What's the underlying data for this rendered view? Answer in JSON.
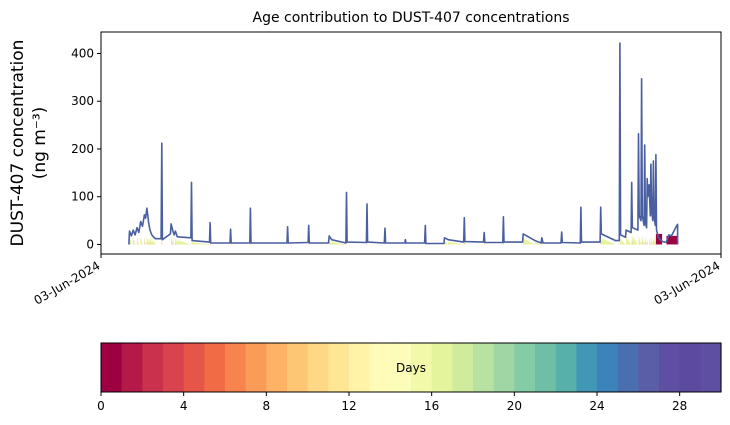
{
  "chart_data": {
    "type": "area",
    "title": "Age contribution to DUST-407 concentrations",
    "ylabel_line1": "DUST-407 concentration",
    "ylabel_line2": "(ng m⁻³)",
    "xlabel": "",
    "ylim": [
      -20,
      445
    ],
    "yticks": [
      0,
      100,
      200,
      300,
      400
    ],
    "xticks": [
      {
        "pos": 0.0,
        "label": "03-Jun-2024"
      },
      {
        "pos": 1.0,
        "label": "03-Jun-2024"
      }
    ],
    "envelope": [
      [
        0.045,
        0
      ],
      [
        0.046,
        28
      ],
      [
        0.049,
        18
      ],
      [
        0.052,
        30
      ],
      [
        0.055,
        20
      ],
      [
        0.058,
        35
      ],
      [
        0.061,
        25
      ],
      [
        0.064,
        48
      ],
      [
        0.067,
        38
      ],
      [
        0.07,
        62
      ],
      [
        0.072,
        55
      ],
      [
        0.074,
        76
      ],
      [
        0.077,
        45
      ],
      [
        0.079,
        30
      ],
      [
        0.082,
        20
      ],
      [
        0.085,
        15
      ],
      [
        0.088,
        12
      ],
      [
        0.097,
        12
      ],
      [
        0.098,
        212
      ],
      [
        0.099,
        10
      ],
      [
        0.112,
        22
      ],
      [
        0.113,
        43
      ],
      [
        0.116,
        28
      ],
      [
        0.118,
        20
      ],
      [
        0.12,
        28
      ],
      [
        0.123,
        16
      ],
      [
        0.145,
        14
      ],
      [
        0.146,
        130
      ],
      [
        0.147,
        8
      ],
      [
        0.175,
        5
      ],
      [
        0.176,
        46
      ],
      [
        0.177,
        3
      ],
      [
        0.208,
        3
      ],
      [
        0.209,
        32
      ],
      [
        0.21,
        3
      ],
      [
        0.24,
        3
      ],
      [
        0.241,
        76
      ],
      [
        0.242,
        3
      ],
      [
        0.3,
        3
      ],
      [
        0.301,
        37
      ],
      [
        0.302,
        3
      ],
      [
        0.334,
        4
      ],
      [
        0.335,
        40
      ],
      [
        0.336,
        3
      ],
      [
        0.367,
        3
      ],
      [
        0.368,
        18
      ],
      [
        0.372,
        10
      ],
      [
        0.395,
        3
      ],
      [
        0.396,
        109
      ],
      [
        0.397,
        5
      ],
      [
        0.428,
        4
      ],
      [
        0.429,
        85
      ],
      [
        0.43,
        5
      ],
      [
        0.457,
        3
      ],
      [
        0.458,
        34
      ],
      [
        0.459,
        3
      ],
      [
        0.49,
        3
      ],
      [
        0.491,
        10
      ],
      [
        0.492,
        3
      ],
      [
        0.522,
        3
      ],
      [
        0.523,
        40
      ],
      [
        0.524,
        2
      ],
      [
        0.553,
        2
      ],
      [
        0.554,
        14
      ],
      [
        0.56,
        10
      ],
      [
        0.585,
        5
      ],
      [
        0.586,
        56
      ],
      [
        0.587,
        6
      ],
      [
        0.617,
        5
      ],
      [
        0.618,
        25
      ],
      [
        0.619,
        4
      ],
      [
        0.648,
        4
      ],
      [
        0.649,
        58
      ],
      [
        0.65,
        5
      ],
      [
        0.68,
        5
      ],
      [
        0.681,
        22
      ],
      [
        0.7,
        8
      ],
      [
        0.71,
        3
      ],
      [
        0.711,
        14
      ],
      [
        0.713,
        3
      ],
      [
        0.742,
        3
      ],
      [
        0.743,
        26
      ],
      [
        0.744,
        4
      ],
      [
        0.773,
        3
      ],
      [
        0.774,
        78
      ],
      [
        0.775,
        5
      ],
      [
        0.805,
        5
      ],
      [
        0.806,
        78
      ],
      [
        0.807,
        22
      ],
      [
        0.83,
        8
      ],
      [
        0.836,
        8
      ],
      [
        0.837,
        422
      ],
      [
        0.838,
        20
      ],
      [
        0.846,
        15
      ],
      [
        0.847,
        30
      ],
      [
        0.855,
        25
      ],
      [
        0.856,
        130
      ],
      [
        0.857,
        35
      ],
      [
        0.866,
        30
      ],
      [
        0.867,
        232
      ],
      [
        0.868,
        60
      ],
      [
        0.871,
        50
      ],
      [
        0.872,
        347
      ],
      [
        0.873,
        60
      ],
      [
        0.876,
        40
      ],
      [
        0.877,
        208
      ],
      [
        0.878,
        45
      ],
      [
        0.88,
        35
      ],
      [
        0.881,
        138
      ],
      [
        0.882,
        100
      ],
      [
        0.884,
        125
      ],
      [
        0.886,
        60
      ],
      [
        0.887,
        168
      ],
      [
        0.888,
        70
      ],
      [
        0.89,
        50
      ],
      [
        0.891,
        175
      ],
      [
        0.892,
        60
      ],
      [
        0.894,
        40
      ],
      [
        0.895,
        188
      ],
      [
        0.896,
        30
      ],
      [
        0.899,
        15
      ],
      [
        0.902,
        10
      ],
      [
        0.906,
        6
      ],
      [
        0.909,
        5
      ],
      [
        0.912,
        5
      ],
      [
        0.916,
        20
      ],
      [
        0.92,
        18
      ],
      [
        0.924,
        28
      ],
      [
        0.928,
        38
      ],
      [
        0.93,
        42
      ],
      [
        0.93,
        0
      ]
    ],
    "colorbar": {
      "label": "Days",
      "range": [
        0,
        30
      ],
      "ticks": [
        0,
        4,
        8,
        12,
        16,
        20,
        24,
        28
      ],
      "palette": "Spectral",
      "colors": [
        "#9e0142",
        "#b41947",
        "#c9314c",
        "#d8434e",
        "#e55649",
        "#f16b44",
        "#f7844e",
        "#fa9c58",
        "#fdb265",
        "#fdc675",
        "#fed884",
        "#fee695",
        "#fef3a7",
        "#fffbb9",
        "#fbfdb9",
        "#f2f9a8",
        "#e3f49c",
        "#cfeb9c",
        "#b8e2a1",
        "#9fd6a4",
        "#85cba5",
        "#6ebfa6",
        "#58b0aa",
        "#4198b6",
        "#3b83ba",
        "#4a6fb1",
        "#5a5ea7",
        "#5e4fa2",
        "#5b4a9f",
        "#5e4fa2"
      ]
    }
  }
}
